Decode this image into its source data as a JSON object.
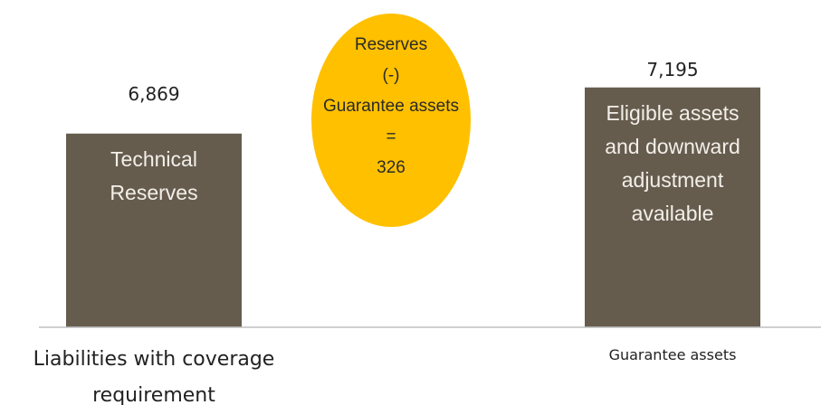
{
  "chart_data": {
    "type": "bar",
    "categories": [
      "Liabilities with coverage requirement",
      "Guarantee assets"
    ],
    "values": [
      6869,
      7195
    ],
    "value_labels": [
      "6,869",
      "7,195"
    ],
    "bar_labels": [
      "Technical Reserves",
      "Eligible assets and downward adjustment available"
    ],
    "color": "#665c4e",
    "ylim": [
      5500,
      7500
    ],
    "annotation": {
      "lines": [
        "Reserves",
        "(-)",
        "Guarantee assets",
        "=",
        "326"
      ],
      "color": "#ffc000"
    }
  }
}
